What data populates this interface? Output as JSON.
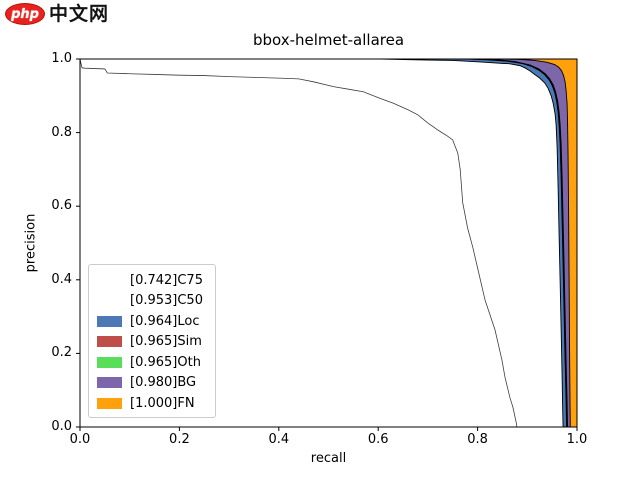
{
  "logo": {
    "php_text": "php",
    "site_text": "中文网",
    "brand_color": "#e8231d"
  },
  "chart": {
    "title": "bbox-helmet-allarea",
    "xlabel": "recall",
    "ylabel": "precision",
    "x_ticks": [
      "0.0",
      "0.2",
      "0.4",
      "0.6",
      "0.8",
      "1.0"
    ],
    "y_ticks": [
      "0.0",
      "0.2",
      "0.4",
      "0.6",
      "0.8",
      "1.0"
    ],
    "legend": [
      {
        "label": "[0.742]C75",
        "color": "#ffffff"
      },
      {
        "label": "[0.953]C50",
        "color": "#ffffff"
      },
      {
        "label": "[0.964]Loc",
        "color": "#4c79b5"
      },
      {
        "label": "[0.965]Sim",
        "color": "#bf4e4b"
      },
      {
        "label": "[0.965]Oth",
        "color": "#58de58"
      },
      {
        "label": "[0.980]BG",
        "color": "#7d66a9"
      },
      {
        "label": "[1.000]FN",
        "color": "#ffa10d"
      }
    ]
  },
  "chart_data": {
    "type": "area",
    "title": "bbox-helmet-allarea",
    "xlabel": "recall",
    "ylabel": "precision",
    "xlim": [
      0,
      1
    ],
    "ylim": [
      0,
      1
    ],
    "x_ticks": [
      0.0,
      0.2,
      0.4,
      0.6,
      0.8,
      1.0
    ],
    "y_ticks": [
      0.0,
      0.2,
      0.4,
      0.6,
      0.8,
      1.0
    ],
    "grid": false,
    "legend_position": "lower left",
    "note": "COCO-style precision-recall error analysis; areas stacked back-to-front FN,BG,Oth,Sim,Loc,C50 with thin black boundary curves; C75 drawn as thin line only",
    "series": [
      {
        "name": "FN",
        "auc": 1.0,
        "legend": "[1.000]FN",
        "fill_color": "#ffa10d",
        "line_color": "#000000",
        "points": [
          [
            0,
            1
          ],
          [
            1,
            1
          ],
          [
            1,
            0
          ]
        ]
      },
      {
        "name": "BG",
        "auc": 0.98,
        "legend": "[0.980]BG",
        "fill_color": "#7d66a9",
        "line_color": "#000000",
        "points": [
          [
            0,
            1
          ],
          [
            0.85,
            1
          ],
          [
            0.885,
            0.999
          ],
          [
            0.915,
            0.996
          ],
          [
            0.94,
            0.991
          ],
          [
            0.955,
            0.985
          ],
          [
            0.963,
            0.978
          ],
          [
            0.969,
            0.968
          ],
          [
            0.973,
            0.955
          ],
          [
            0.976,
            0.938
          ],
          [
            0.978,
            0.915
          ],
          [
            0.98,
            0.88
          ],
          [
            0.981,
            0.83
          ],
          [
            0.982,
            0.74
          ],
          [
            0.983,
            0.6
          ],
          [
            0.984,
            0.42
          ],
          [
            0.985,
            0.22
          ],
          [
            0.986,
            0.06
          ],
          [
            0.9865,
            0
          ]
        ]
      },
      {
        "name": "Oth",
        "auc": 0.965,
        "legend": "[0.965]Oth",
        "fill_color": "#58de58",
        "line_color": "#000000",
        "points": [
          [
            0,
            1
          ],
          [
            0.8,
            1
          ],
          [
            0.84,
            0.998
          ],
          [
            0.875,
            0.993
          ],
          [
            0.905,
            0.984
          ],
          [
            0.923,
            0.973
          ],
          [
            0.936,
            0.96
          ],
          [
            0.945,
            0.946
          ],
          [
            0.952,
            0.93
          ],
          [
            0.957,
            0.91
          ],
          [
            0.961,
            0.886
          ],
          [
            0.964,
            0.856
          ],
          [
            0.966,
            0.822
          ],
          [
            0.968,
            0.772
          ],
          [
            0.97,
            0.682
          ],
          [
            0.972,
            0.562
          ],
          [
            0.974,
            0.442
          ],
          [
            0.976,
            0.312
          ],
          [
            0.978,
            0.182
          ],
          [
            0.98,
            0.072
          ],
          [
            0.981,
            0
          ]
        ]
      },
      {
        "name": "Sim",
        "auc": 0.965,
        "legend": "[0.965]Sim",
        "fill_color": "#bf4e4b",
        "line_color": "#000000",
        "points": [
          [
            0,
            1
          ],
          [
            0.79,
            1
          ],
          [
            0.83,
            0.998
          ],
          [
            0.87,
            0.993
          ],
          [
            0.9,
            0.985
          ],
          [
            0.92,
            0.974
          ],
          [
            0.933,
            0.962
          ],
          [
            0.943,
            0.948
          ],
          [
            0.95,
            0.932
          ],
          [
            0.956,
            0.912
          ],
          [
            0.96,
            0.888
          ],
          [
            0.963,
            0.858
          ],
          [
            0.965,
            0.824
          ],
          [
            0.967,
            0.775
          ],
          [
            0.969,
            0.685
          ],
          [
            0.971,
            0.565
          ],
          [
            0.973,
            0.445
          ],
          [
            0.975,
            0.315
          ],
          [
            0.977,
            0.185
          ],
          [
            0.979,
            0.075
          ],
          [
            0.98,
            0
          ]
        ]
      },
      {
        "name": "Loc",
        "auc": 0.964,
        "legend": "[0.964]Loc",
        "fill_color": "#4c79b5",
        "line_color": "#000000",
        "points": [
          [
            0,
            1
          ],
          [
            0.78,
            1
          ],
          [
            0.82,
            0.998
          ],
          [
            0.86,
            0.994
          ],
          [
            0.89,
            0.988
          ],
          [
            0.91,
            0.979
          ],
          [
            0.925,
            0.968
          ],
          [
            0.935,
            0.957
          ],
          [
            0.944,
            0.943
          ],
          [
            0.95,
            0.928
          ],
          [
            0.955,
            0.91
          ],
          [
            0.959,
            0.885
          ],
          [
            0.962,
            0.855
          ],
          [
            0.964,
            0.82
          ],
          [
            0.966,
            0.77
          ],
          [
            0.968,
            0.68
          ],
          [
            0.97,
            0.56
          ],
          [
            0.972,
            0.44
          ],
          [
            0.974,
            0.31
          ],
          [
            0.976,
            0.18
          ],
          [
            0.978,
            0.07
          ],
          [
            0.979,
            0
          ]
        ]
      },
      {
        "name": "C50",
        "auc": 0.953,
        "legend": "[0.953]C50",
        "fill_color": "#ffffff",
        "line_color": "#000000",
        "points": [
          [
            0,
            1
          ],
          [
            0.6,
            1
          ],
          [
            0.65,
            0.9985
          ],
          [
            0.7,
            0.997
          ],
          [
            0.75,
            0.996
          ],
          [
            0.805,
            0.992
          ],
          [
            0.85,
            0.988
          ],
          [
            0.865,
            0.987
          ],
          [
            0.885,
            0.982
          ],
          [
            0.895,
            0.976
          ],
          [
            0.905,
            0.968
          ],
          [
            0.915,
            0.958
          ],
          [
            0.925,
            0.948
          ],
          [
            0.935,
            0.935
          ],
          [
            0.942,
            0.92
          ],
          [
            0.948,
            0.9
          ],
          [
            0.952,
            0.88
          ],
          [
            0.956,
            0.85
          ],
          [
            0.958,
            0.82
          ],
          [
            0.96,
            0.76
          ],
          [
            0.962,
            0.65
          ],
          [
            0.964,
            0.52
          ],
          [
            0.966,
            0.4
          ],
          [
            0.968,
            0.27
          ],
          [
            0.97,
            0.14
          ],
          [
            0.971,
            0.06
          ],
          [
            0.972,
            0
          ]
        ]
      },
      {
        "name": "C75",
        "auc": 0.742,
        "legend": "[0.742]C75",
        "fill_color": null,
        "line_color": "#3c3c3c",
        "points": [
          [
            0,
            1
          ],
          [
            0.004,
            0.976
          ],
          [
            0.01,
            0.975
          ],
          [
            0.05,
            0.973
          ],
          [
            0.055,
            0.962
          ],
          [
            0.1,
            0.96
          ],
          [
            0.15,
            0.958
          ],
          [
            0.2,
            0.956
          ],
          [
            0.25,
            0.955
          ],
          [
            0.3,
            0.952
          ],
          [
            0.35,
            0.95
          ],
          [
            0.4,
            0.948
          ],
          [
            0.44,
            0.946
          ],
          [
            0.47,
            0.938
          ],
          [
            0.51,
            0.925
          ],
          [
            0.54,
            0.918
          ],
          [
            0.57,
            0.911
          ],
          [
            0.6,
            0.895
          ],
          [
            0.63,
            0.88
          ],
          [
            0.66,
            0.862
          ],
          [
            0.68,
            0.848
          ],
          [
            0.7,
            0.826
          ],
          [
            0.72,
            0.807
          ],
          [
            0.74,
            0.79
          ],
          [
            0.75,
            0.78
          ],
          [
            0.755,
            0.762
          ],
          [
            0.76,
            0.745
          ],
          [
            0.765,
            0.7
          ],
          [
            0.77,
            0.61
          ],
          [
            0.775,
            0.575
          ],
          [
            0.78,
            0.54
          ],
          [
            0.79,
            0.49
          ],
          [
            0.8,
            0.432
          ],
          [
            0.815,
            0.345
          ],
          [
            0.835,
            0.264
          ],
          [
            0.849,
            0.182
          ],
          [
            0.855,
            0.136
          ],
          [
            0.865,
            0.08
          ],
          [
            0.871,
            0.054
          ],
          [
            0.878,
            0.01
          ],
          [
            0.879,
            0
          ]
        ]
      }
    ]
  }
}
